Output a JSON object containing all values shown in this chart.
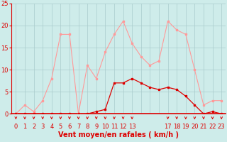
{
  "hours": [
    0,
    1,
    2,
    3,
    4,
    5,
    6,
    7,
    8,
    9,
    10,
    11,
    12,
    13,
    14,
    15,
    16,
    17,
    18,
    19,
    20,
    21,
    22,
    23
  ],
  "rafales": [
    0,
    2,
    0.5,
    3,
    8,
    18,
    18,
    0,
    11,
    8,
    14,
    18,
    21,
    16,
    13,
    11,
    12,
    21,
    19,
    18,
    10,
    2,
    3,
    3
  ],
  "moyen": [
    0,
    0,
    0,
    0,
    0,
    0,
    0,
    0,
    0,
    0.5,
    1,
    7,
    7,
    8,
    7,
    6,
    5.5,
    6,
    5.5,
    4,
    2,
    0,
    0.5,
    0
  ],
  "xlim_min": -0.5,
  "xlim_max": 23.5,
  "ylim_min": 0,
  "ylim_max": 25,
  "yticks": [
    0,
    5,
    10,
    15,
    20,
    25
  ],
  "xtick_labels": [
    "0",
    "1",
    "2",
    "3",
    "4",
    "5",
    "6",
    "7",
    "8",
    "9",
    "10",
    "11",
    "12",
    "13",
    "",
    "",
    "",
    "17",
    "18",
    "19",
    "20",
    "21",
    "22",
    "23"
  ],
  "xlabel": "Vent moyen/en rafales ( km/h )",
  "bg_color": "#ceecea",
  "grid_color": "#aacccc",
  "line_color_rafales": "#ff9999",
  "line_color_moyen": "#dd0000",
  "marker_size": 2.0,
  "arrow_hours": [
    0,
    1,
    2,
    3,
    4,
    5,
    6,
    7,
    8,
    9,
    10,
    11,
    12,
    13,
    17,
    18,
    19,
    20,
    21,
    22,
    23
  ],
  "tick_label_color": "#dd0000",
  "xlabel_color": "#dd0000",
  "spine_color": "#dd0000",
  "ylabel_fontsize": 6,
  "xlabel_fontsize": 7
}
